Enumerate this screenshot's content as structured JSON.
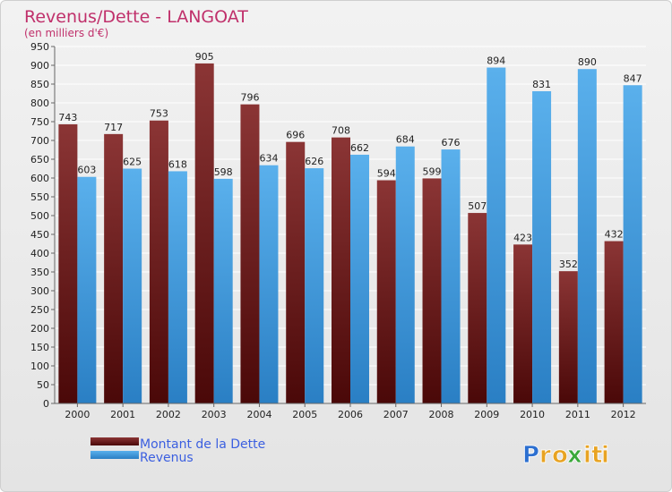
{
  "chart_data": {
    "type": "bar",
    "title": "Revenus/Dette - LANGOAT",
    "subtitle": "(en milliers d'€)",
    "categories": [
      "2000",
      "2001",
      "2002",
      "2003",
      "2004",
      "2005",
      "2006",
      "2007",
      "2008",
      "2009",
      "2010",
      "2011",
      "2012"
    ],
    "series": [
      {
        "name": "Montant de la Dette",
        "values": [
          743,
          717,
          753,
          905,
          796,
          696,
          708,
          594,
          599,
          507,
          423,
          352,
          432
        ]
      },
      {
        "name": "Revenus",
        "values": [
          603,
          625,
          618,
          598,
          634,
          626,
          662,
          684,
          676,
          894,
          831,
          890,
          847
        ]
      }
    ],
    "ylim": [
      0,
      950
    ],
    "ytick_step": 50,
    "grid": true,
    "legend_position": "bottom-left",
    "xlabel": "",
    "ylabel": ""
  },
  "colors": {
    "title": "#c0306b",
    "legend_text": "#3b5fe0",
    "debt_dark": "#4a0808",
    "debt_light": "#8b3535",
    "revenue_dark": "#2a7fc4",
    "revenue_light": "#5ab0ec"
  },
  "logo": {
    "letters": [
      "P",
      "r",
      "o",
      "x",
      "i",
      "t",
      "i"
    ],
    "colors": [
      "#2c6fd0",
      "#e8a322",
      "#e8a322",
      "#3aa83a",
      "#e8a322",
      "#e8a322",
      "#e8a322"
    ]
  }
}
